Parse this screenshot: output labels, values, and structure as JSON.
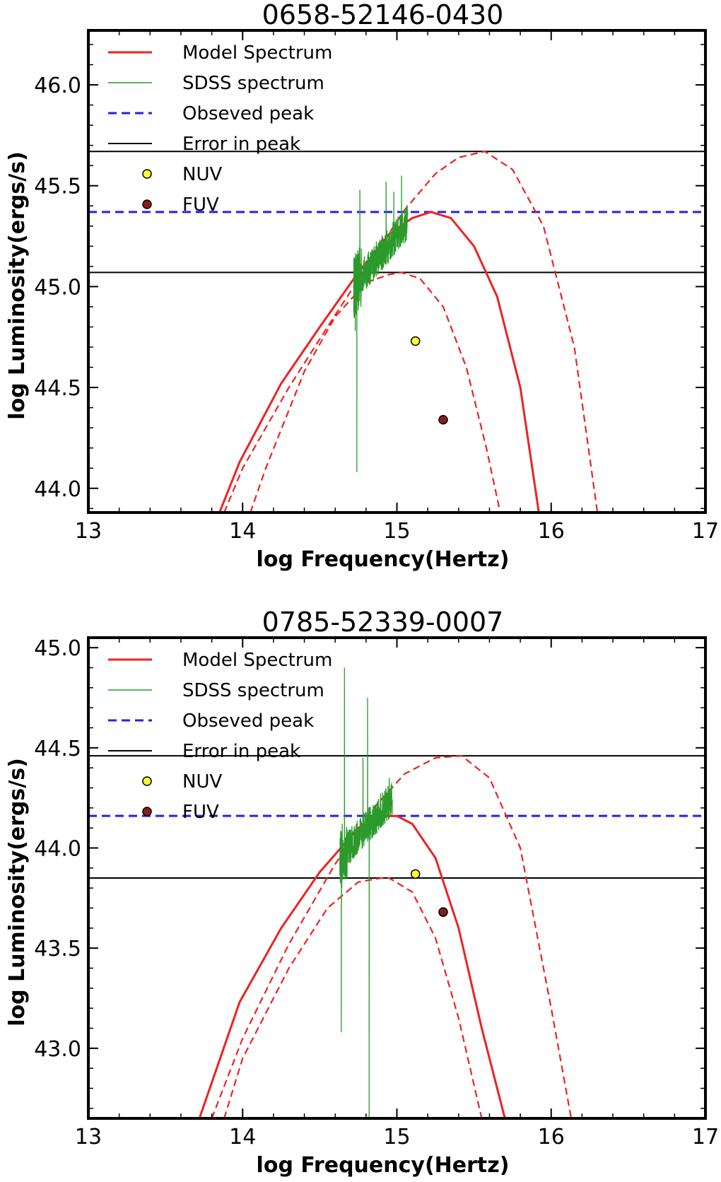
{
  "chart_data": [
    {
      "type": "line",
      "title": "0658-52146-0430",
      "xlabel": "log Frequency(Hertz)",
      "ylabel": "log Luminosity(ergs/s)",
      "xlim": [
        13,
        17
      ],
      "ylim": [
        43.88,
        46.27
      ],
      "xticks": [
        13,
        14,
        15,
        16,
        17
      ],
      "xtick_labels": [
        "13",
        "14",
        "15",
        "16",
        "17"
      ],
      "yticks": [
        44.0,
        44.5,
        45.0,
        45.5,
        46.0
      ],
      "ytick_labels": [
        "44.0",
        "44.5",
        "45.0",
        "45.5",
        "46.0"
      ],
      "legend": [
        "Model Spectrum",
        "SDSS spectrum",
        "Obseved peak",
        "Error in peak",
        "NUV",
        "FUV"
      ],
      "legend_position": "top-left",
      "observed_peak": 45.37,
      "peak_error_bounds": [
        45.07,
        45.67
      ],
      "model_curves": [
        {
          "name": "Model Spectrum",
          "style": "solid",
          "color": "#ee2222",
          "x": [
            13.85,
            13.98,
            14.25,
            14.5,
            14.75,
            14.95,
            15.1,
            15.22,
            15.35,
            15.5,
            15.65,
            15.8,
            15.92
          ],
          "y": [
            43.88,
            44.13,
            44.52,
            44.8,
            45.07,
            45.26,
            45.34,
            45.37,
            45.34,
            45.2,
            44.95,
            44.5,
            43.88
          ]
        },
        {
          "name": "Upper model",
          "style": "dashed",
          "color": "#ee2222",
          "x": [
            13.88,
            14.0,
            14.3,
            14.6,
            14.85,
            15.05,
            15.25,
            15.4,
            15.57,
            15.75,
            15.95,
            16.15,
            16.3
          ],
          "y": [
            43.88,
            44.1,
            44.5,
            44.86,
            45.15,
            45.38,
            45.56,
            45.64,
            45.67,
            45.58,
            45.3,
            44.7,
            43.88
          ]
        },
        {
          "name": "Lower model",
          "style": "dashed",
          "color": "#ee2222",
          "x": [
            14.05,
            14.15,
            14.4,
            14.6,
            14.8,
            14.95,
            15.03,
            15.15,
            15.3,
            15.45,
            15.58,
            15.67
          ],
          "y": [
            43.88,
            44.1,
            44.58,
            44.85,
            45.02,
            45.06,
            45.07,
            45.04,
            44.9,
            44.6,
            44.2,
            43.88
          ]
        }
      ],
      "sdss_spectrum": {
        "color": "#2a9a2a",
        "x_range": [
          14.72,
          15.07
        ],
        "y_range": [
          45.0,
          45.32
        ],
        "spikes": [
          [
            14.74,
            44.08
          ],
          [
            14.76,
            45.48
          ],
          [
            14.73,
            44.78
          ],
          [
            14.93,
            45.52
          ],
          [
            15.03,
            45.55
          ],
          [
            14.98,
            45.47
          ]
        ]
      },
      "points": [
        {
          "name": "NUV",
          "x": 15.12,
          "y": 44.73,
          "color": "#ffff33"
        },
        {
          "name": "FUV",
          "x": 15.3,
          "y": 44.34,
          "color": "#8b1a1a"
        }
      ]
    },
    {
      "type": "line",
      "title": "0785-52339-0007",
      "xlabel": "log Frequency(Hertz)",
      "ylabel": "log Luminosity(ergs/s)",
      "xlim": [
        13,
        17
      ],
      "ylim": [
        42.65,
        45.05
      ],
      "xticks": [
        13,
        14,
        15,
        16,
        17
      ],
      "xtick_labels": [
        "13",
        "14",
        "15",
        "16",
        "17"
      ],
      "yticks": [
        43.0,
        43.5,
        44.0,
        44.5,
        45.0
      ],
      "ytick_labels": [
        "43.0",
        "43.5",
        "44.0",
        "44.5",
        "45.0"
      ],
      "legend": [
        "Model Spectrum",
        "SDSS spectrum",
        "Obseved peak",
        "Error in peak",
        "NUV",
        "FUV"
      ],
      "legend_position": "top-left",
      "observed_peak": 44.16,
      "peak_error_bounds": [
        43.85,
        44.46
      ],
      "model_curves": [
        {
          "name": "Model Spectrum",
          "style": "solid",
          "color": "#ee2222",
          "x": [
            13.72,
            13.98,
            14.25,
            14.5,
            14.75,
            14.9,
            15.0,
            15.1,
            15.25,
            15.4,
            15.55,
            15.7
          ],
          "y": [
            42.65,
            43.23,
            43.6,
            43.88,
            44.1,
            44.16,
            44.16,
            44.12,
            43.95,
            43.6,
            43.1,
            42.65
          ]
        },
        {
          "name": "Upper model",
          "style": "dashed",
          "color": "#ee2222",
          "x": [
            13.8,
            14.0,
            14.3,
            14.6,
            14.85,
            15.05,
            15.25,
            15.42,
            15.6,
            15.8,
            16.0,
            16.13
          ],
          "y": [
            42.65,
            43.05,
            43.52,
            43.92,
            44.2,
            44.37,
            44.45,
            44.46,
            44.35,
            44.0,
            43.2,
            42.65
          ]
        },
        {
          "name": "Lower model",
          "style": "dashed",
          "color": "#ee2222",
          "x": [
            13.88,
            14.0,
            14.3,
            14.55,
            14.75,
            14.9,
            14.95,
            15.1,
            15.25,
            15.4,
            15.55
          ],
          "y": [
            42.65,
            42.95,
            43.4,
            43.7,
            43.83,
            43.85,
            43.85,
            43.78,
            43.55,
            43.15,
            42.65
          ]
        }
      ],
      "sdss_spectrum": {
        "color": "#2a9a2a",
        "x_range": [
          14.63,
          14.97
        ],
        "y_range": [
          43.95,
          44.25
        ],
        "spikes": [
          [
            14.64,
            43.08
          ],
          [
            14.66,
            44.9
          ],
          [
            14.78,
            44.45
          ],
          [
            14.81,
            44.75
          ],
          [
            14.82,
            42.65
          ],
          [
            14.95,
            44.35
          ]
        ]
      },
      "points": [
        {
          "name": "NUV",
          "x": 15.12,
          "y": 43.87,
          "color": "#ffff33"
        },
        {
          "name": "FUV",
          "x": 15.3,
          "y": 43.68,
          "color": "#8b1a1a"
        }
      ]
    }
  ]
}
